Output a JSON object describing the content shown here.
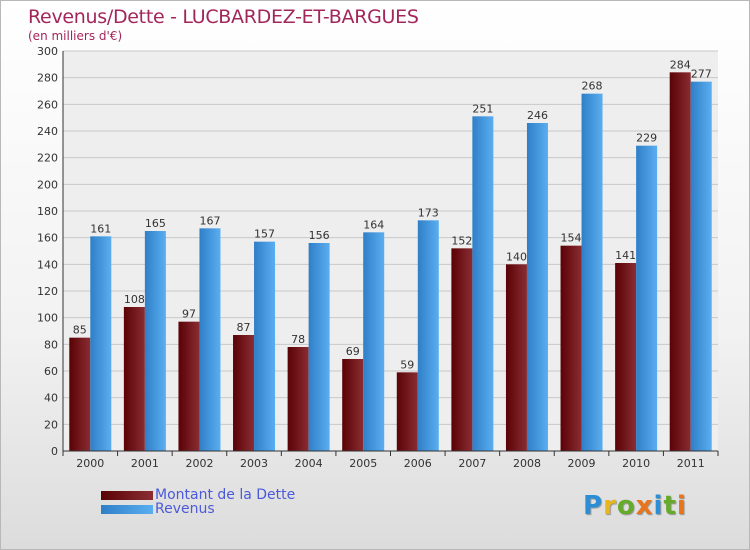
{
  "chart_data": {
    "type": "bar",
    "title": "Revenus/Dette - LUCBARDEZ-ET-BARGUES",
    "subtitle": "(en milliers d'€)",
    "categories": [
      "2000",
      "2001",
      "2002",
      "2003",
      "2004",
      "2005",
      "2006",
      "2007",
      "2008",
      "2009",
      "2010",
      "2011"
    ],
    "series": [
      {
        "name": "Montant de la Dette",
        "values": [
          85,
          108,
          97,
          87,
          78,
          69,
          59,
          152,
          140,
          154,
          141,
          284
        ],
        "color": "#6b0a0f"
      },
      {
        "name": "Revenus",
        "values": [
          161,
          165,
          167,
          157,
          156,
          164,
          173,
          251,
          246,
          268,
          229,
          277
        ],
        "color": "#3d97e0"
      }
    ],
    "ylim": [
      0,
      300
    ],
    "yticks": [
      0,
      20,
      40,
      60,
      80,
      100,
      120,
      140,
      160,
      180,
      200,
      220,
      240,
      260,
      280,
      300
    ],
    "grid": true,
    "legend_position": "bottom-left"
  },
  "brand": {
    "letters": [
      {
        "ch": "P",
        "color": "#2a8fd6"
      },
      {
        "ch": "r",
        "color": "#e8b61c"
      },
      {
        "ch": "o",
        "color": "#66aa2c"
      },
      {
        "ch": "x",
        "color": "#e8741c"
      },
      {
        "ch": "i",
        "color": "#2a8fd6"
      },
      {
        "ch": "t",
        "color": "#66aa2c"
      },
      {
        "ch": "i",
        "color": "#e8741c"
      }
    ]
  }
}
